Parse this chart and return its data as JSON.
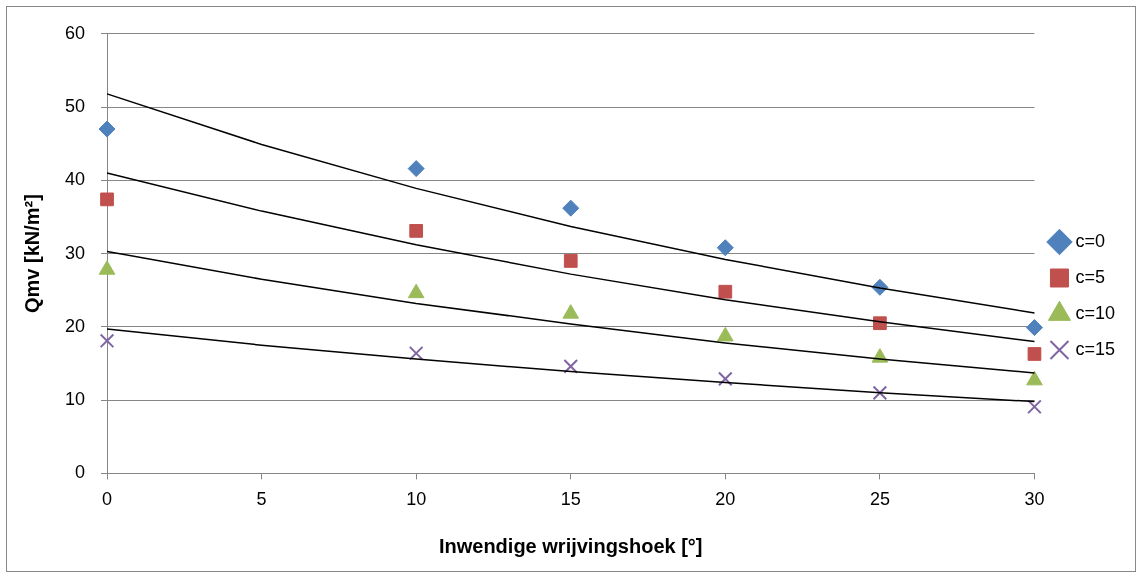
{
  "chart_data": {
    "type": "scatter",
    "xlabel": "Inwendige wrijvingshoek [°]",
    "ylabel": "Qmv [kN/m²]",
    "xlim": [
      0,
      30
    ],
    "xticks": [
      0,
      5,
      10,
      15,
      20,
      25,
      30
    ],
    "ylim": [
      0,
      60
    ],
    "yticks": [
      0,
      10,
      20,
      30,
      40,
      50,
      60
    ],
    "grid": "y",
    "legend": "right",
    "series": [
      {
        "name": "c=0",
        "color": "#4f81bd",
        "marker": "diamond",
        "x": [
          0,
          10,
          15,
          20,
          25,
          30
        ],
        "values": [
          47.0,
          41.6,
          36.2,
          30.8,
          25.4,
          19.9
        ]
      },
      {
        "name": "c=5",
        "color": "#c0504d",
        "marker": "square",
        "x": [
          0,
          10,
          15,
          20,
          25,
          30
        ],
        "values": [
          37.4,
          33.1,
          29.0,
          24.8,
          20.5,
          16.3
        ]
      },
      {
        "name": "c=10",
        "color": "#9bbb59",
        "marker": "triangle",
        "x": [
          0,
          10,
          15,
          20,
          25,
          30
        ],
        "values": [
          27.8,
          24.6,
          21.8,
          18.7,
          15.8,
          12.7
        ]
      },
      {
        "name": "c=15",
        "color": "#8064a2",
        "marker": "cross",
        "x": [
          0,
          10,
          15,
          20,
          25,
          30
        ],
        "values": [
          18.1,
          16.4,
          14.6,
          12.9,
          11.0,
          9.1
        ]
      },
      {
        "type": "line",
        "color": "#000000",
        "marker": "none",
        "x": [
          0,
          5,
          10,
          15,
          20,
          25,
          30
        ],
        "values": [
          51.8,
          44.9,
          38.9,
          33.7,
          29.2,
          25.3,
          21.9
        ]
      },
      {
        "type": "line",
        "color": "#000000",
        "marker": "none",
        "x": [
          0,
          5,
          10,
          15,
          20,
          25,
          30
        ],
        "values": [
          41.0,
          35.8,
          31.2,
          27.2,
          23.7,
          20.7,
          18.0
        ]
      },
      {
        "type": "line",
        "color": "#000000",
        "marker": "none",
        "x": [
          0,
          5,
          10,
          15,
          20,
          25,
          30
        ],
        "values": [
          30.3,
          26.5,
          23.2,
          20.4,
          17.8,
          15.6,
          13.7
        ]
      },
      {
        "type": "line",
        "color": "#000000",
        "marker": "none",
        "x": [
          0,
          5,
          10,
          15,
          20,
          25,
          30
        ],
        "values": [
          19.7,
          17.5,
          15.6,
          13.9,
          12.4,
          11.0,
          9.8
        ]
      }
    ]
  }
}
